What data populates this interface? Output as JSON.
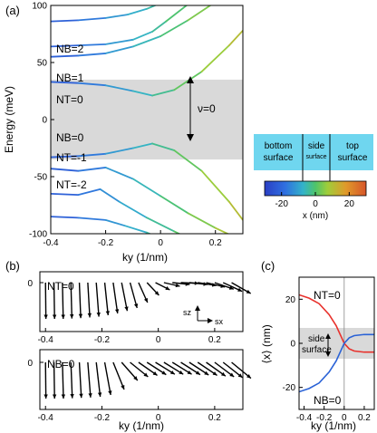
{
  "chart_data": [
    {
      "panel": "(a)",
      "type": "line",
      "xlabel": "ky (1/nm)",
      "ylabel": "Energy (meV)",
      "xlim": [
        -0.4,
        0.3
      ],
      "ylim": [
        -100,
        100
      ],
      "xticks": [
        "-0.4",
        "-0.2",
        "0",
        "0.2"
      ],
      "yticks": [
        "-100",
        "-50",
        "0",
        "50",
        "100"
      ],
      "band_labels": [
        "NB=2",
        "NB=1",
        "NT=0",
        "NB=0",
        "NT=-1",
        "NT=-2"
      ],
      "gap_band": [
        -35,
        35
      ],
      "gap_label": "ν=0",
      "series": [
        {
          "x": [
            -0.4,
            -0.3,
            -0.2,
            -0.12,
            -0.05,
            0.0,
            0.05
          ],
          "y": [
            86,
            87,
            89,
            92,
            97,
            102,
            108
          ]
        },
        {
          "x": [
            -0.4,
            -0.3,
            -0.2,
            -0.1,
            -0.03,
            0.02,
            0.1
          ],
          "y": [
            64,
            65,
            66,
            70,
            77,
            86,
            101
          ]
        },
        {
          "x": [
            -0.4,
            -0.3,
            -0.2,
            -0.1,
            0.0,
            0.1,
            0.2
          ],
          "y": [
            55,
            56,
            58,
            64,
            73,
            87,
            103
          ]
        },
        {
          "x": [
            -0.4,
            -0.3,
            -0.2,
            -0.1,
            -0.03,
            0.05,
            0.15,
            0.25,
            0.3
          ],
          "y": [
            33,
            32,
            30,
            25,
            21,
            26,
            42,
            65,
            78
          ]
        },
        {
          "x": [
            -0.4,
            -0.3,
            -0.2,
            -0.1,
            -0.03,
            0.05,
            0.15,
            0.25,
            0.3
          ],
          "y": [
            -33,
            -32,
            -30,
            -25,
            -21,
            -27,
            -45,
            -72,
            -88
          ]
        },
        {
          "x": [
            -0.4,
            -0.3,
            -0.2,
            -0.1,
            0.0,
            0.1,
            0.2,
            0.28
          ],
          "y": [
            -43,
            -45,
            -42,
            -52,
            -67,
            -82,
            -95,
            -104
          ]
        },
        {
          "x": [
            -0.4,
            -0.3,
            -0.22,
            -0.15,
            -0.05,
            0.05,
            0.12
          ],
          "y": [
            -65,
            -66,
            -61,
            -72,
            -86,
            -98,
            -106
          ]
        },
        {
          "x": [
            -0.4,
            -0.3,
            -0.2,
            -0.13,
            -0.05,
            0.02
          ],
          "y": [
            -85,
            -86,
            -88,
            -93,
            -99,
            -106
          ]
        }
      ]
    },
    {
      "type": "colorbar",
      "xlabel": "x (nm)",
      "ticks": [
        "-20",
        "0",
        "20"
      ],
      "range": [
        -30,
        30
      ],
      "schematic": {
        "bottom": [
          "bottom",
          "surface"
        ],
        "side": [
          "side",
          "surface"
        ],
        "top": [
          "top",
          "surface"
        ]
      }
    },
    {
      "panel": "(b)",
      "type": "quiver",
      "xlabel": "ky (1/nm)",
      "xlim": [
        -0.42,
        0.3
      ],
      "xticks": [
        "-0.4",
        "-0.2",
        "0",
        "0.2"
      ],
      "ytick": "0",
      "legend": {
        "sz": "sz",
        "sx": "sx"
      },
      "upper_label": "NT=0",
      "lower_label": "NB=0",
      "upper": {
        "ky": [
          -0.4,
          -0.37,
          -0.34,
          -0.31,
          -0.28,
          -0.25,
          -0.22,
          -0.19,
          -0.16,
          -0.13,
          -0.1,
          -0.07,
          -0.04,
          -0.01,
          0.02,
          0.05,
          0.08,
          0.11,
          0.14,
          0.17,
          0.2,
          0.23,
          0.26
        ],
        "sx": [
          0.02,
          0.03,
          0.04,
          0.05,
          0.07,
          0.1,
          0.13,
          0.17,
          0.22,
          0.28,
          0.35,
          0.45,
          0.6,
          0.72,
          0.8,
          0.87,
          0.9,
          0.92,
          0.93,
          0.94,
          0.95,
          0.95,
          0.96
        ],
        "sz": [
          -1,
          -1,
          -1,
          -0.99,
          -0.98,
          -0.96,
          -0.94,
          -0.9,
          -0.85,
          -0.78,
          -0.7,
          -0.55,
          -0.35,
          -0.2,
          -0.1,
          -0.05,
          -0.02,
          -0.05,
          -0.08,
          -0.12,
          -0.18,
          -0.24,
          -0.3
        ]
      },
      "lower": {
        "ky": [
          -0.4,
          -0.37,
          -0.34,
          -0.31,
          -0.28,
          -0.25,
          -0.22,
          -0.19,
          -0.16,
          -0.13,
          -0.1,
          -0.07,
          -0.04,
          -0.01,
          0.02,
          0.05,
          0.08,
          0.11,
          0.14,
          0.17,
          0.2,
          0.23,
          0.26
        ],
        "sx": [
          0.02,
          0.03,
          0.05,
          0.07,
          0.1,
          0.14,
          0.2,
          0.3,
          0.55,
          0.8,
          0.9,
          0.94,
          0.96,
          0.97,
          0.97,
          0.97,
          0.97,
          0.97,
          0.97,
          0.97,
          0.97,
          0.97,
          0.97
        ],
        "sz": [
          -1,
          -1,
          -1,
          -0.99,
          -0.98,
          -0.97,
          -0.95,
          -0.9,
          -0.75,
          -0.5,
          -0.4,
          -0.36,
          -0.34,
          -0.33,
          -0.33,
          -0.33,
          -0.34,
          -0.35,
          -0.36,
          -0.38,
          -0.4,
          -0.42,
          -0.44
        ]
      }
    },
    {
      "panel": "(c)",
      "type": "line",
      "xlabel": "ky (1/nm)",
      "ylabel": "⟨x⟩ (nm)",
      "xlim": [
        -0.45,
        0.3
      ],
      "ylim": [
        -30,
        30
      ],
      "xticks": [
        "-0.4",
        "-0.2",
        "0",
        "0.2"
      ],
      "yticks": [
        "-20",
        "0",
        "20"
      ],
      "band": [
        -7,
        7
      ],
      "band_label": [
        "side",
        "surface"
      ],
      "series": [
        {
          "name": "NT=0",
          "color": "#e8312c",
          "x": [
            -0.45,
            -0.35,
            -0.25,
            -0.15,
            -0.08,
            -0.03,
            0.0,
            0.05,
            0.1,
            0.2,
            0.3
          ],
          "y": [
            22,
            20.5,
            18,
            13,
            8,
            3,
            0,
            -2.5,
            -3.5,
            -4,
            -4
          ]
        },
        {
          "name": "NB=0",
          "color": "#2a62d6",
          "x": [
            -0.45,
            -0.35,
            -0.25,
            -0.15,
            -0.08,
            -0.03,
            0.0,
            0.05,
            0.1,
            0.2,
            0.3
          ],
          "y": [
            -22,
            -20.5,
            -18,
            -13,
            -8,
            -3,
            0,
            2.5,
            3.5,
            4,
            4
          ]
        }
      ]
    }
  ]
}
